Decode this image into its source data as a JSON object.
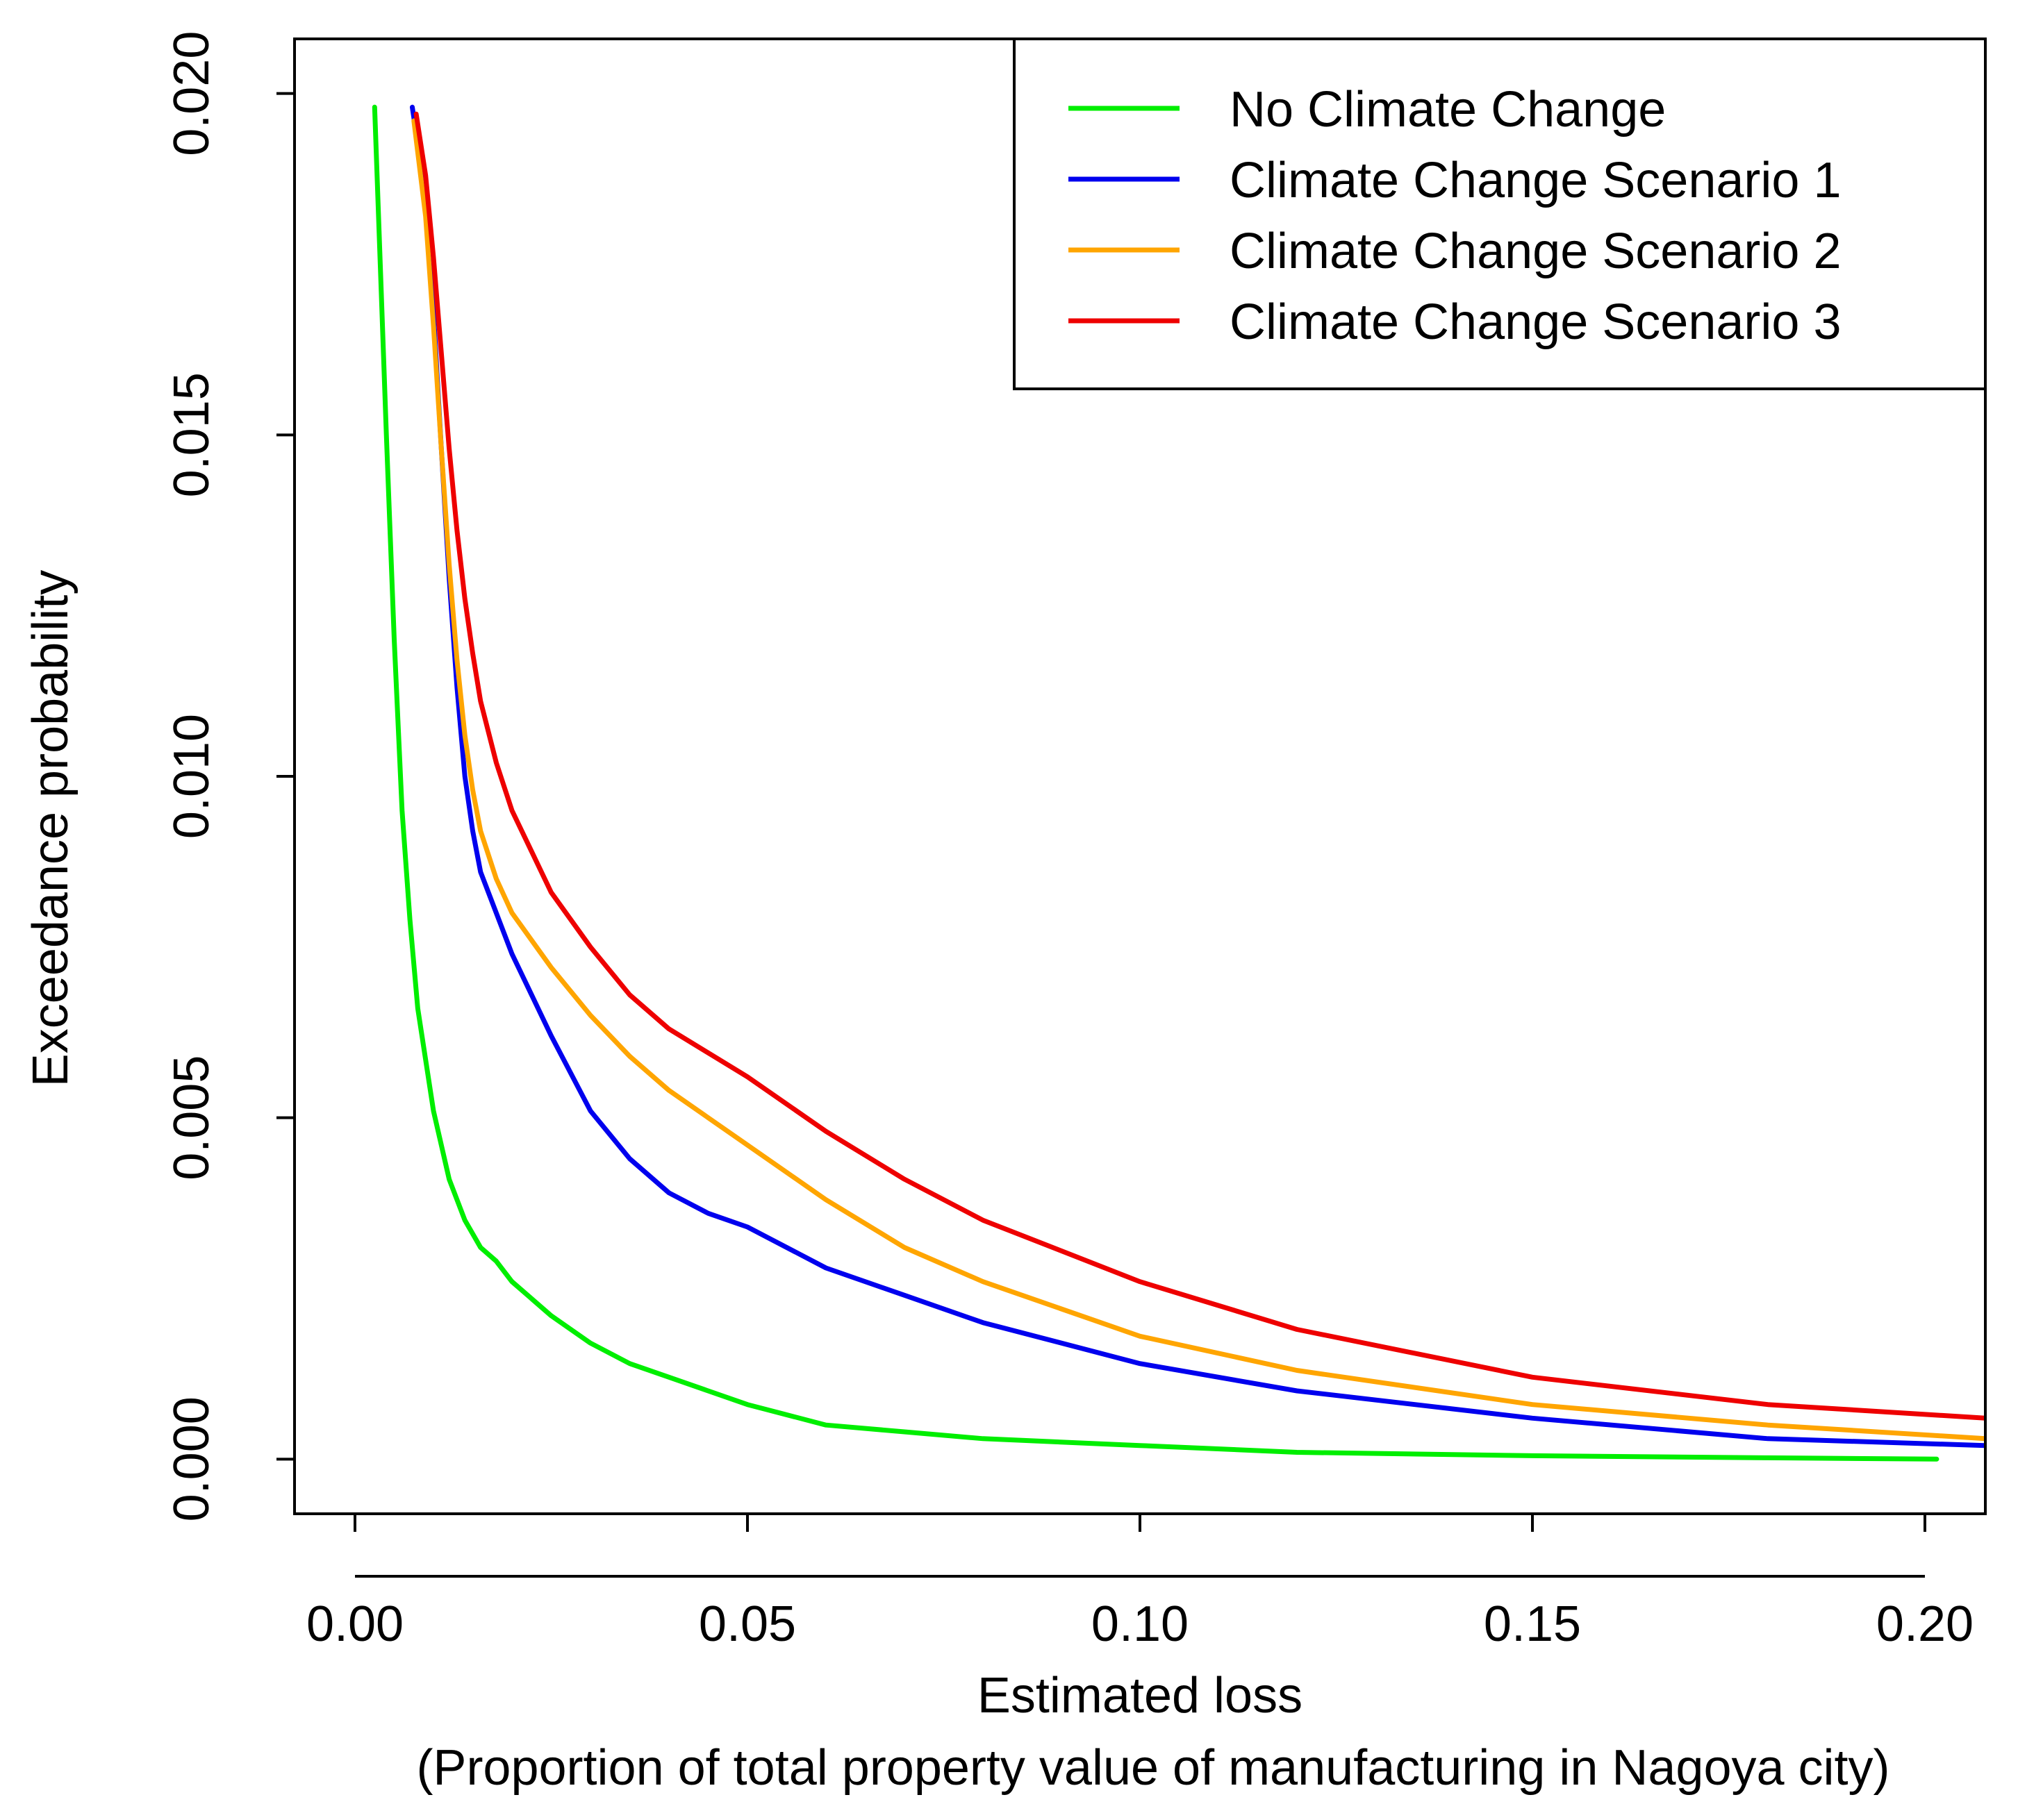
{
  "chart_data": {
    "type": "line",
    "title": "",
    "xlabel": "Estimated loss",
    "xlabel_sub": "(Proportion of total property value of manufacturing in Nagoya city)",
    "ylabel": "Exceedance probability",
    "xlim": [
      -0.0077,
      0.2077
    ],
    "ylim": [
      -0.0008,
      0.0208
    ],
    "xticks": [
      0.0,
      0.05,
      0.1,
      0.15,
      0.2
    ],
    "xtick_labels": [
      "0.00",
      "0.05",
      "0.10",
      "0.15",
      "0.20"
    ],
    "yticks": [
      0.0,
      0.005,
      0.01,
      0.015,
      0.02
    ],
    "ytick_labels": [
      "0.000",
      "0.005",
      "0.010",
      "0.015",
      "0.020"
    ],
    "grid": false,
    "legend_position": "top-right",
    "series": [
      {
        "name": "No Climate Change",
        "color": "#00ee00",
        "x": [
          0.0025,
          0.004,
          0.005,
          0.006,
          0.007,
          0.008,
          0.01,
          0.012,
          0.014,
          0.016,
          0.018,
          0.02,
          0.025,
          0.03,
          0.035,
          0.04,
          0.05,
          0.06,
          0.07,
          0.08,
          0.1,
          0.12,
          0.15,
          0.18,
          0.2015
        ],
        "y": [
          0.0198,
          0.015,
          0.012,
          0.0095,
          0.0079,
          0.0066,
          0.0051,
          0.0041,
          0.0035,
          0.0031,
          0.0029,
          0.0026,
          0.0021,
          0.0017,
          0.0014,
          0.0012,
          0.0008,
          0.0005,
          0.0004,
          0.0003,
          0.0002,
          0.0001,
          5e-05,
          2e-05,
          0.0
        ]
      },
      {
        "name": "Climate Change Scenario 1",
        "color": "#0000ee",
        "x": [
          0.0073,
          0.009,
          0.01,
          0.011,
          0.012,
          0.013,
          0.014,
          0.015,
          0.016,
          0.018,
          0.02,
          0.025,
          0.03,
          0.035,
          0.04,
          0.045,
          0.05,
          0.06,
          0.07,
          0.08,
          0.1,
          0.12,
          0.15,
          0.18,
          0.2077
        ],
        "y": [
          0.0198,
          0.0185,
          0.0168,
          0.0148,
          0.0129,
          0.0113,
          0.01,
          0.0092,
          0.0086,
          0.008,
          0.0074,
          0.0062,
          0.0051,
          0.0044,
          0.0039,
          0.0036,
          0.0034,
          0.0028,
          0.0024,
          0.002,
          0.0014,
          0.001,
          0.0006,
          0.0003,
          0.0002
        ]
      },
      {
        "name": "Climate Change Scenario 2",
        "color": "#ffa500",
        "x": [
          0.0075,
          0.009,
          0.01,
          0.011,
          0.012,
          0.013,
          0.014,
          0.015,
          0.016,
          0.018,
          0.02,
          0.025,
          0.03,
          0.035,
          0.04,
          0.05,
          0.06,
          0.07,
          0.08,
          0.1,
          0.12,
          0.15,
          0.18,
          0.2077
        ],
        "y": [
          0.0196,
          0.0182,
          0.0166,
          0.0148,
          0.0131,
          0.0117,
          0.0106,
          0.0098,
          0.0092,
          0.0085,
          0.008,
          0.0072,
          0.0065,
          0.0059,
          0.0054,
          0.0046,
          0.0038,
          0.0031,
          0.0026,
          0.0018,
          0.0013,
          0.0008,
          0.0005,
          0.0003
        ]
      },
      {
        "name": "Climate Change Scenario 3",
        "color": "#ee0000",
        "x": [
          0.0078,
          0.009,
          0.01,
          0.011,
          0.012,
          0.013,
          0.014,
          0.015,
          0.016,
          0.018,
          0.02,
          0.025,
          0.03,
          0.035,
          0.04,
          0.05,
          0.06,
          0.07,
          0.08,
          0.1,
          0.12,
          0.15,
          0.18,
          0.2077
        ],
        "y": [
          0.0197,
          0.0188,
          0.0176,
          0.0162,
          0.0148,
          0.0136,
          0.0126,
          0.0118,
          0.0111,
          0.0102,
          0.0095,
          0.0083,
          0.0075,
          0.0068,
          0.0063,
          0.0056,
          0.0048,
          0.0041,
          0.0035,
          0.0026,
          0.0019,
          0.0012,
          0.0008,
          0.0006
        ]
      }
    ]
  }
}
